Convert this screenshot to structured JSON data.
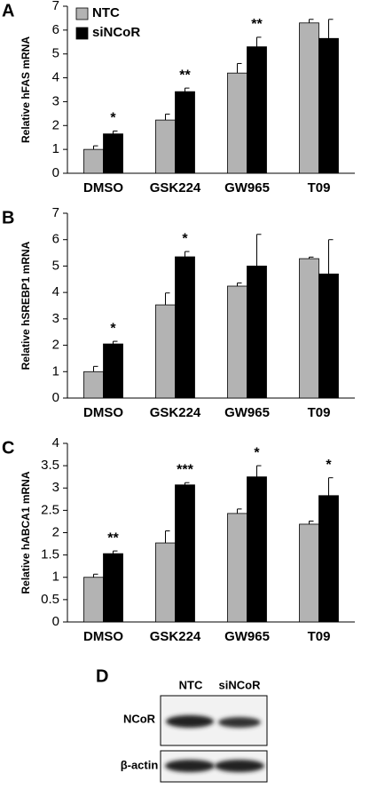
{
  "chart_data": [
    {
      "type": "bar",
      "panel": "A",
      "y_label": "Relative hFAS mRNA",
      "categories": [
        "DMSO",
        "GSK224",
        "GW965",
        "T09"
      ],
      "series": [
        {
          "name": "NTC",
          "color": "#b3b3b3",
          "values": [
            1.0,
            2.23,
            4.2,
            6.3
          ],
          "errors": [
            0.15,
            0.25,
            0.4,
            0.15
          ]
        },
        {
          "name": "siNCoR",
          "color": "#000000",
          "values": [
            1.65,
            3.42,
            5.3,
            5.65
          ],
          "errors": [
            0.12,
            0.15,
            0.4,
            0.8
          ]
        }
      ],
      "annotations": [
        "*",
        "**",
        "**",
        null
      ],
      "ylim": [
        0,
        7
      ],
      "yticks": [
        0,
        1,
        2,
        3,
        4,
        5,
        6,
        7
      ],
      "legend": "top-left"
    },
    {
      "type": "bar",
      "panel": "B",
      "y_label": "Relative hSREBP1 mRNA",
      "categories": [
        "DMSO",
        "GSK224",
        "GW965",
        "T09"
      ],
      "series": [
        {
          "color": "#b3b3b3",
          "values": [
            1.0,
            3.53,
            4.24,
            5.28
          ],
          "errors": [
            0.2,
            0.45,
            0.12,
            0.06
          ]
        },
        {
          "color": "#000000",
          "values": [
            2.05,
            5.35,
            5.0,
            4.7
          ],
          "errors": [
            0.1,
            0.2,
            1.2,
            1.3
          ]
        }
      ],
      "annotations": [
        "*",
        "*",
        null,
        null
      ],
      "ylim": [
        0,
        7
      ],
      "yticks": [
        0,
        1,
        2,
        3,
        4,
        5,
        6,
        7
      ]
    },
    {
      "type": "bar",
      "panel": "C",
      "y_label": "Relative hABCA1 mRNA",
      "categories": [
        "DMSO",
        "GSK224",
        "GW965",
        "T09"
      ],
      "series": [
        {
          "color": "#b3b3b3",
          "values": [
            1.0,
            1.77,
            2.43,
            2.19
          ],
          "errors": [
            0.07,
            0.27,
            0.1,
            0.07
          ]
        },
        {
          "color": "#000000",
          "values": [
            1.53,
            3.07,
            3.25,
            2.83
          ],
          "errors": [
            0.06,
            0.05,
            0.25,
            0.4
          ]
        }
      ],
      "annotations": [
        "**",
        "***",
        "*",
        "*"
      ],
      "ylim": [
        0,
        4
      ],
      "yticks": [
        0,
        0.5,
        1,
        1.5,
        2,
        2.5,
        3,
        3.5,
        4
      ]
    }
  ],
  "blot": {
    "panel": "D",
    "columns": [
      "NTC",
      "siNCoR"
    ],
    "rows": [
      "NCoR",
      "β-actin"
    ]
  }
}
